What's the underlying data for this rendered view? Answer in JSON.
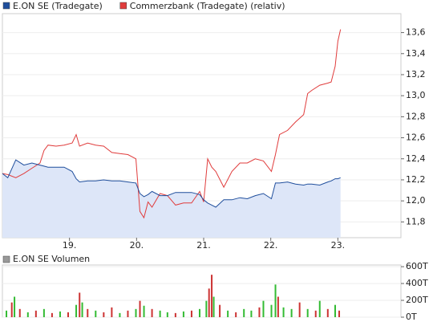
{
  "chart_data": [
    {
      "type": "line",
      "x": [
        18.0,
        18.08,
        18.2,
        18.32,
        18.44,
        18.56,
        18.62,
        18.68,
        18.8,
        18.92,
        19.04,
        19.1,
        19.15,
        19.27,
        19.39,
        19.51,
        19.63,
        19.75,
        19.87,
        19.99,
        20.05,
        20.11,
        20.17,
        20.23,
        20.35,
        20.46,
        20.58,
        20.7,
        20.82,
        20.94,
        21.0,
        21.06,
        21.12,
        21.18,
        21.3,
        21.42,
        21.54,
        21.65,
        21.77,
        21.89,
        22.01,
        22.07,
        22.13,
        22.25,
        22.37,
        22.49,
        22.55,
        22.61,
        22.73,
        22.85,
        22.9,
        22.96,
        23.0,
        23.04
      ],
      "series": [
        {
          "name": "E.ON SE (Tradegate)",
          "color": "#1f4e9c",
          "fill": "#dde6f8",
          "values": [
            12.26,
            12.22,
            12.39,
            12.34,
            12.36,
            12.34,
            12.33,
            12.32,
            12.32,
            12.32,
            12.28,
            12.21,
            12.18,
            12.19,
            12.19,
            12.2,
            12.19,
            12.19,
            12.18,
            12.17,
            12.07,
            12.04,
            12.06,
            12.09,
            12.05,
            12.05,
            12.08,
            12.08,
            12.08,
            12.06,
            12.01,
            11.98,
            11.96,
            11.94,
            12.01,
            12.01,
            12.03,
            12.02,
            12.05,
            12.07,
            12.02,
            12.17,
            12.17,
            12.18,
            12.16,
            12.15,
            12.16,
            12.16,
            12.15,
            12.18,
            12.19,
            12.21,
            12.21,
            12.22
          ]
        },
        {
          "name": "Commerzbank (Tradegate) (relativ)",
          "color": "#e03c3c",
          "values": [
            12.26,
            12.25,
            12.22,
            12.26,
            12.31,
            12.36,
            12.48,
            12.53,
            12.52,
            12.53,
            12.55,
            12.63,
            12.52,
            12.55,
            12.53,
            12.52,
            12.46,
            12.45,
            12.44,
            12.4,
            11.9,
            11.84,
            11.99,
            11.94,
            12.07,
            12.05,
            11.96,
            11.98,
            11.98,
            12.09,
            11.99,
            12.4,
            12.32,
            12.28,
            12.13,
            12.28,
            12.36,
            12.36,
            12.4,
            12.38,
            12.28,
            12.44,
            12.63,
            12.67,
            12.75,
            12.82,
            13.02,
            13.05,
            13.1,
            13.12,
            13.13,
            13.28,
            13.52,
            13.63
          ]
        }
      ],
      "xlim": [
        18,
        23.94
      ],
      "xticks": [
        {
          "value": 19,
          "label": "19."
        },
        {
          "value": 20,
          "label": "20."
        },
        {
          "value": 21,
          "label": "21."
        },
        {
          "value": 22,
          "label": "22."
        },
        {
          "value": 23,
          "label": "23."
        }
      ],
      "ylim": [
        11.65,
        13.78
      ],
      "yticks": [
        {
          "value": 11.8,
          "label": "11,8"
        },
        {
          "value": 12.0,
          "label": "12,0"
        },
        {
          "value": 12.2,
          "label": "12,2"
        },
        {
          "value": 12.4,
          "label": "12,4"
        },
        {
          "value": 12.6,
          "label": "12,6"
        },
        {
          "value": 12.8,
          "label": "12,8"
        },
        {
          "value": 13.0,
          "label": "13,0"
        },
        {
          "value": 13.2,
          "label": "13,2"
        },
        {
          "value": 13.4,
          "label": "13,4"
        },
        {
          "value": 13.6,
          "label": "13,6"
        }
      ],
      "grid": true
    },
    {
      "type": "bar",
      "title": "E.ON SE Volumen",
      "color": "#999999",
      "x": [
        18.06,
        18.14,
        18.18,
        18.26,
        18.38,
        18.5,
        18.62,
        18.74,
        18.86,
        18.98,
        19.1,
        19.15,
        19.19,
        19.27,
        19.39,
        19.51,
        19.63,
        19.75,
        19.87,
        19.99,
        20.05,
        20.11,
        20.23,
        20.35,
        20.46,
        20.58,
        20.7,
        20.82,
        20.94,
        21.04,
        21.08,
        21.12,
        21.15,
        21.24,
        21.36,
        21.48,
        21.6,
        21.71,
        21.83,
        21.89,
        22.01,
        22.07,
        22.11,
        22.19,
        22.31,
        22.43,
        22.55,
        22.67,
        22.73,
        22.85,
        22.96,
        23.02
      ],
      "values": [
        78000,
        175000,
        243000,
        97000,
        58000,
        78000,
        97000,
        49000,
        68000,
        58000,
        146000,
        291000,
        175000,
        97000,
        78000,
        58000,
        116000,
        49000,
        78000,
        97000,
        194000,
        136000,
        97000,
        78000,
        58000,
        49000,
        68000,
        78000,
        97000,
        194000,
        340000,
        504000,
        243000,
        146000,
        78000,
        58000,
        97000,
        78000,
        116000,
        194000,
        146000,
        388000,
        243000,
        116000,
        97000,
        175000,
        97000,
        78000,
        194000,
        97000,
        146000,
        78000
      ],
      "colors": [
        "#33bb33",
        "#cc3333",
        "#33bb33",
        "#cc3333",
        "#33bb33",
        "#cc3333",
        "#33bb33",
        "#cc3333",
        "#33bb33",
        "#cc3333",
        "#33bb33",
        "#cc3333",
        "#33bb33",
        "#cc3333",
        "#33bb33",
        "#cc3333",
        "#cc3333",
        "#33bb33",
        "#cc3333",
        "#33bb33",
        "#cc3333",
        "#33bb33",
        "#cc3333",
        "#33bb33",
        "#33bb33",
        "#cc3333",
        "#33bb33",
        "#cc3333",
        "#33bb33",
        "#33bb33",
        "#cc3333",
        "#cc3333",
        "#33bb33",
        "#cc3333",
        "#33bb33",
        "#cc3333",
        "#33bb33",
        "#33bb33",
        "#cc3333",
        "#33bb33",
        "#33bb33",
        "#33bb33",
        "#cc3333",
        "#33bb33",
        "#33bb33",
        "#cc3333",
        "#33bb33",
        "#cc3333",
        "#33bb33",
        "#cc3333",
        "#33bb33",
        "#cc3333"
      ],
      "xlim": [
        18,
        23.94
      ],
      "ylim": [
        0,
        620000
      ],
      "yticks": [
        {
          "value": 0,
          "label": "0T"
        },
        {
          "value": 200000,
          "label": "200T"
        },
        {
          "value": 400000,
          "label": "400T"
        },
        {
          "value": 600000,
          "label": "600T"
        }
      ],
      "grid": true
    }
  ]
}
